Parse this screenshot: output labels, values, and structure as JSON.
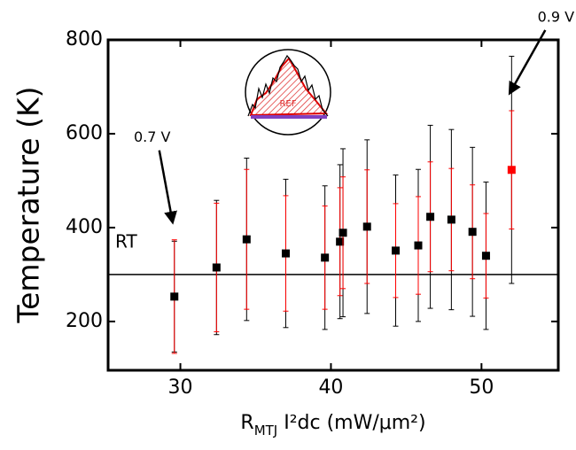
{
  "chart_data": {
    "type": "scatter",
    "x_label": {
      "main": "R",
      "sub": "MTJ",
      "rest": " I²dc (mW/μm²)"
    },
    "y_label": "Temperature (K)",
    "x": [
      29.6,
      32.4,
      34.4,
      37.0,
      39.6,
      40.6,
      40.8,
      42.4,
      44.3,
      45.8,
      46.6,
      48.0,
      49.4,
      50.3,
      52.0
    ],
    "values": [
      253,
      315,
      375,
      345,
      336,
      370,
      389,
      402,
      351,
      362,
      423,
      417,
      391,
      340,
      523
    ],
    "error_red": [
      121,
      137,
      149,
      123,
      110,
      115,
      119,
      121,
      100,
      104,
      117,
      109,
      100,
      90,
      126
    ],
    "error_black": [
      118,
      143,
      173,
      158,
      153,
      164,
      179,
      185,
      161,
      162,
      195,
      192,
      180,
      157,
      242
    ],
    "colors": [
      "#000000",
      "#000000",
      "#000000",
      "#000000",
      "#000000",
      "#000000",
      "#000000",
      "#000000",
      "#000000",
      "#000000",
      "#000000",
      "#000000",
      "#000000",
      "#000000",
      "#ff0000"
    ],
    "error_red_color": "#ff0000",
    "error_black_color": "#000000",
    "xlim": [
      25.2,
      55.1
    ],
    "ylim": [
      96,
      800
    ],
    "xticks": [
      30,
      40,
      50
    ],
    "yticks": [
      200,
      400,
      600,
      800
    ],
    "reference_line": {
      "value": 300,
      "label": "RT"
    },
    "annotations": [
      {
        "text": "0.7 V",
        "point": 0
      },
      {
        "text": "0.9 V",
        "point": 14
      }
    ],
    "inset_label": "REF"
  }
}
